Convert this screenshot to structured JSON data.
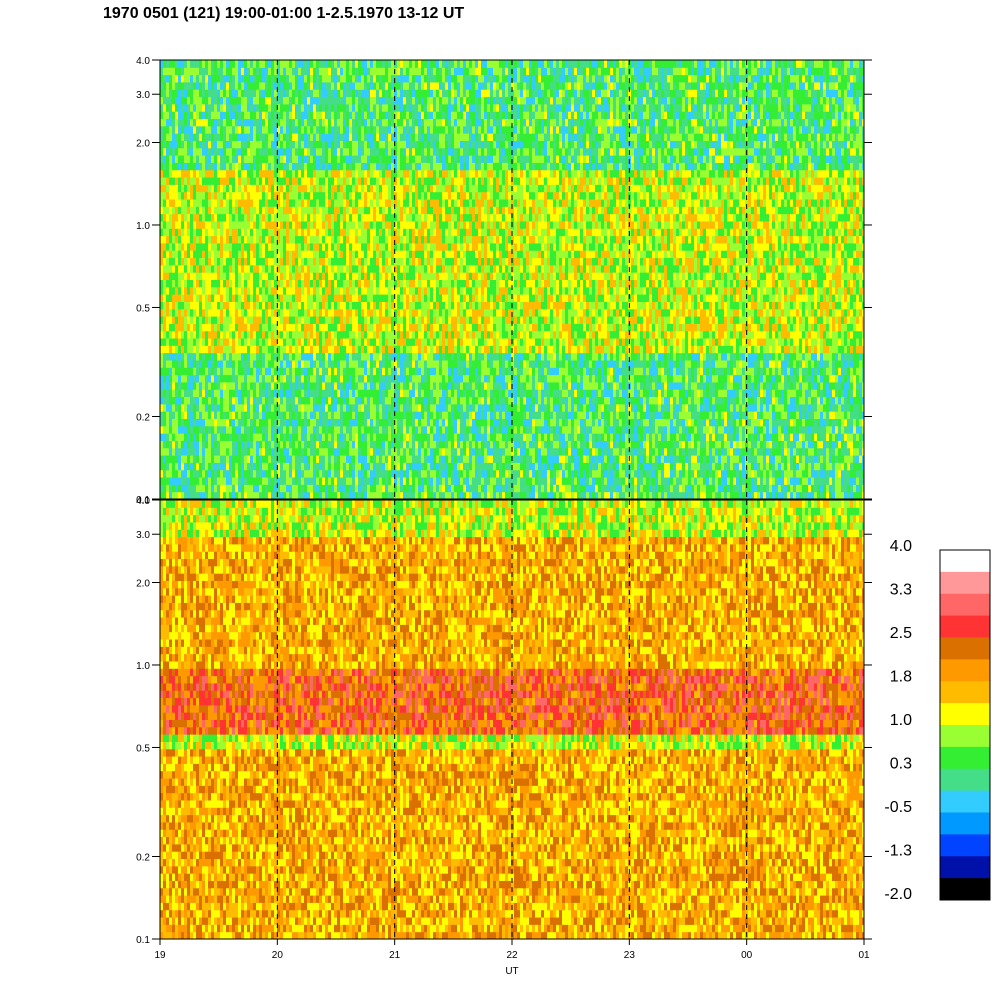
{
  "title": "1970 0501 (121) 19:00-01:00 1-2.5.1970  13-12 UT",
  "chart_data": [
    {
      "type": "heatmap",
      "panel": "upper",
      "x_tick_labels": [
        "19",
        "20",
        "21",
        "22",
        "23",
        "00",
        "01"
      ],
      "y_tick_labels": [
        "0.1",
        "0.2",
        "0.5",
        "1.0",
        "2.0",
        "3.0",
        "4.0"
      ],
      "y_values": [
        0.1,
        0.2,
        0.5,
        1.0,
        2.0,
        3.0,
        4.0
      ],
      "y_scale": "log",
      "ylim": [
        0.1,
        4.0
      ],
      "dashed_vlines": [
        "20",
        "21",
        "22",
        "23",
        "00"
      ],
      "description_bands": [
        {
          "y": [
            0.1,
            0.35
          ],
          "level": 0.3
        },
        {
          "y": [
            0.35,
            1.2
          ],
          "level": 1.0
        },
        {
          "y": [
            1.2,
            1.6
          ],
          "level": 1.0
        },
        {
          "y": [
            1.6,
            4.0
          ],
          "level": 0.3
        }
      ]
    },
    {
      "type": "heatmap",
      "panel": "lower",
      "xlabel": "UT",
      "x_tick_labels": [
        "19",
        "20",
        "21",
        "22",
        "23",
        "00",
        "01"
      ],
      "y_tick_labels": [
        "0.1",
        "0.2",
        "0.5",
        "1.0",
        "2.0",
        "3.0",
        "4.0"
      ],
      "y_values": [
        0.1,
        0.2,
        0.5,
        1.0,
        2.0,
        3.0,
        4.0
      ],
      "y_scale": "log",
      "ylim": [
        0.1,
        4.0
      ],
      "dashed_vlines": [
        "20",
        "21",
        "22",
        "23",
        "00"
      ],
      "description_bands": [
        {
          "y": [
            0.1,
            0.5
          ],
          "level": 1.8
        },
        {
          "y": [
            0.55,
            1.0
          ],
          "level": 2.5
        },
        {
          "y": [
            1.0,
            3.0
          ],
          "level": 1.8
        },
        {
          "y": [
            3.0,
            4.0
          ],
          "level": 1.0
        }
      ]
    }
  ],
  "colorbar": {
    "labels": [
      "4.0",
      "3.3",
      "2.5",
      "1.8",
      "1.0",
      "0.3",
      "-0.5",
      "-1.3",
      "-2.0"
    ],
    "colors": [
      "#ffffff",
      "#ff9999",
      "#ff6666",
      "#ff3333",
      "#d97000",
      "#ff9900",
      "#ffbb00",
      "#ffff00",
      "#99ff33",
      "#33ee33",
      "#44dd88",
      "#33ccff",
      "#0099ff",
      "#0044ff",
      "#0011aa",
      "#000000"
    ]
  }
}
